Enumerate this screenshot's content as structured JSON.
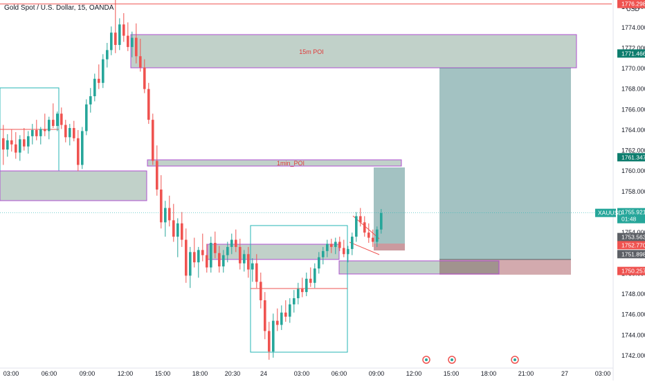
{
  "header": {
    "symbol_label": "Gold Spot / U.S. Dollar, 15, OANDA",
    "currency": "USD",
    "top_scale": "17 30"
  },
  "colors": {
    "up": "#26a69a",
    "down": "#ef5350",
    "green_zone": "#1f5b3c",
    "teal_zone": "#0d5e5e",
    "red_zone": "#8c1f2a",
    "purple": "#b04fd1",
    "teal_line": "#26b5b5",
    "red_line": "#ef5350"
  },
  "chart_data": {
    "type": "candlestick",
    "symbol": "XAUUSD",
    "timeframe": "15",
    "y_axis": {
      "range": [
        1741,
        1778
      ],
      "ticks": [
        1742,
        1744,
        1746,
        1748,
        1750,
        1752,
        1754,
        1756,
        1758,
        1760,
        1762,
        1764,
        1766,
        1768,
        1770,
        1772,
        1774,
        1776
      ],
      "tick_labels": [
        "1742.000",
        "1744.000",
        "1746.000",
        "1748.000",
        "1750.000",
        "1752.000",
        "1754.000",
        "1756.000",
        "1758.000",
        "1760.000",
        "1762.000",
        "1764.000",
        "1766.000",
        "1768.000",
        "1770.000",
        "1772.000",
        "1774.000",
        "1776.000"
      ]
    },
    "x_axis": {
      "tick_labels": [
        "03:00",
        "06:00",
        "09:00",
        "12:00",
        "15:00",
        "18:00",
        "20:30",
        "24",
        "03:00",
        "06:00",
        "09:00",
        "12:00",
        "15:00",
        "18:00",
        "21:00",
        "27",
        "03:00"
      ]
    },
    "price_labels": [
      {
        "value": 1776.298,
        "label": "1776.298",
        "color": "#ef5350"
      },
      {
        "value": 1771.466,
        "label": "1771.466",
        "color": "#0d7d6e"
      },
      {
        "value": 1761.347,
        "label": "1761.347",
        "color": "#0d7d6e"
      },
      {
        "value": 1755.921,
        "label": "1755.921",
        "sub": "01:48",
        "color": "#26a69a",
        "symbol_tag": "XAUUSD"
      },
      {
        "value": 1753.563,
        "label": "1753.563",
        "color": "#5d6066"
      },
      {
        "value": 1752.77,
        "label": "1752.770",
        "color": "#ef5350"
      },
      {
        "value": 1751.898,
        "label": "1751.898",
        "color": "#5d6066"
      },
      {
        "value": 1750.257,
        "label": "1750.257",
        "color": "#ef5350"
      }
    ],
    "zones": [
      {
        "label": "15m POI"
      },
      {
        "label": "1min_POI"
      }
    ],
    "candles_ohlc": [
      [
        1763.2,
        1764.5,
        1760.6,
        1762.1
      ],
      [
        1762.1,
        1763.6,
        1761.4,
        1763.0
      ],
      [
        1763.0,
        1764.1,
        1761.9,
        1762.6
      ],
      [
        1762.6,
        1763.8,
        1761.2,
        1761.8
      ],
      [
        1761.8,
        1763.5,
        1761.0,
        1763.1
      ],
      [
        1763.1,
        1764.2,
        1762.0,
        1762.4
      ],
      [
        1762.4,
        1763.9,
        1761.7,
        1763.4
      ],
      [
        1763.4,
        1764.6,
        1762.6,
        1764.0
      ],
      [
        1764.0,
        1765.0,
        1763.0,
        1763.4
      ],
      [
        1763.4,
        1764.3,
        1762.6,
        1764.1
      ],
      [
        1764.1,
        1765.6,
        1763.4,
        1763.9
      ],
      [
        1763.9,
        1765.3,
        1763.1,
        1765.0
      ],
      [
        1765.0,
        1766.6,
        1764.2,
        1764.4
      ],
      [
        1764.4,
        1765.8,
        1763.9,
        1765.6
      ],
      [
        1765.6,
        1766.2,
        1764.1,
        1764.5
      ],
      [
        1764.5,
        1765.0,
        1762.8,
        1763.3
      ],
      [
        1763.3,
        1764.6,
        1762.5,
        1764.2
      ],
      [
        1764.2,
        1764.9,
        1762.9,
        1763.2
      ],
      [
        1763.2,
        1764.0,
        1760.0,
        1760.6
      ],
      [
        1760.6,
        1764.3,
        1760.2,
        1763.9
      ],
      [
        1763.9,
        1767.0,
        1763.5,
        1766.5
      ],
      [
        1766.5,
        1768.1,
        1765.7,
        1767.3
      ],
      [
        1767.3,
        1769.5,
        1766.8,
        1769.0
      ],
      [
        1769.0,
        1770.4,
        1768.0,
        1768.6
      ],
      [
        1768.6,
        1771.4,
        1768.1,
        1770.9
      ],
      [
        1770.9,
        1772.5,
        1770.1,
        1771.8
      ],
      [
        1771.8,
        1774.1,
        1771.3,
        1773.5
      ],
      [
        1773.5,
        1776.8,
        1771.5,
        1772.3
      ],
      [
        1772.3,
        1774.9,
        1771.8,
        1774.3
      ],
      [
        1774.3,
        1775.4,
        1772.6,
        1773.2
      ],
      [
        1773.2,
        1774.5,
        1771.7,
        1772.1
      ],
      [
        1772.1,
        1773.6,
        1771.1,
        1773.0
      ],
      [
        1773.0,
        1774.4,
        1770.5,
        1771.2
      ],
      [
        1771.2,
        1772.9,
        1769.7,
        1770.1
      ],
      [
        1770.1,
        1770.9,
        1767.6,
        1768.0
      ],
      [
        1768.0,
        1768.6,
        1764.6,
        1765.0
      ],
      [
        1765.0,
        1765.6,
        1760.6,
        1761.0
      ],
      [
        1761.0,
        1762.5,
        1757.6,
        1758.2
      ],
      [
        1758.2,
        1759.6,
        1754.4,
        1755.0
      ],
      [
        1755.0,
        1757.1,
        1753.6,
        1756.4
      ],
      [
        1756.4,
        1757.6,
        1754.6,
        1755.2
      ],
      [
        1755.2,
        1756.8,
        1753.1,
        1753.6
      ],
      [
        1753.6,
        1755.4,
        1751.6,
        1754.9
      ],
      [
        1754.9,
        1756.0,
        1752.6,
        1753.3
      ],
      [
        1753.3,
        1754.4,
        1749.1,
        1749.8
      ],
      [
        1749.8,
        1752.6,
        1748.6,
        1752.1
      ],
      [
        1752.1,
        1753.5,
        1750.6,
        1751.1
      ],
      [
        1751.1,
        1752.6,
        1749.6,
        1752.3
      ],
      [
        1752.3,
        1753.9,
        1751.2,
        1751.8
      ],
      [
        1751.8,
        1752.9,
        1750.1,
        1750.6
      ],
      [
        1750.6,
        1753.6,
        1750.1,
        1753.0
      ],
      [
        1753.0,
        1754.1,
        1751.5,
        1752.0
      ],
      [
        1752.0,
        1752.7,
        1750.1,
        1750.7
      ],
      [
        1750.7,
        1752.3,
        1750.1,
        1751.8
      ],
      [
        1751.8,
        1753.1,
        1751.1,
        1752.6
      ],
      [
        1752.6,
        1753.9,
        1751.9,
        1753.3
      ],
      [
        1753.3,
        1754.3,
        1752.1,
        1752.6
      ],
      [
        1752.6,
        1753.4,
        1750.4,
        1751.0
      ],
      [
        1751.0,
        1752.3,
        1750.2,
        1751.9
      ],
      [
        1751.9,
        1752.6,
        1749.6,
        1750.4
      ],
      [
        1750.4,
        1751.5,
        1749.2,
        1751.0
      ],
      [
        1751.0,
        1751.9,
        1748.6,
        1749.2
      ],
      [
        1749.2,
        1750.1,
        1746.6,
        1747.4
      ],
      [
        1747.4,
        1748.2,
        1743.6,
        1744.4
      ],
      [
        1744.4,
        1745.3,
        1741.6,
        1742.4
      ],
      [
        1742.4,
        1746.1,
        1741.8,
        1745.4
      ],
      [
        1745.4,
        1746.6,
        1744.4,
        1745.0
      ],
      [
        1745.0,
        1746.9,
        1744.5,
        1746.2
      ],
      [
        1746.2,
        1747.4,
        1745.3,
        1745.8
      ],
      [
        1745.8,
        1747.6,
        1745.2,
        1747.0
      ],
      [
        1747.0,
        1748.4,
        1746.2,
        1747.6
      ],
      [
        1747.6,
        1749.1,
        1747.0,
        1748.5
      ],
      [
        1748.5,
        1749.6,
        1747.7,
        1748.2
      ],
      [
        1748.2,
        1750.1,
        1747.8,
        1749.5
      ],
      [
        1749.5,
        1750.6,
        1748.7,
        1749.1
      ],
      [
        1749.1,
        1751.0,
        1748.6,
        1750.5
      ],
      [
        1750.5,
        1752.1,
        1750.0,
        1751.6
      ],
      [
        1751.6,
        1752.6,
        1750.9,
        1752.2
      ],
      [
        1752.2,
        1753.3,
        1751.6,
        1752.9
      ],
      [
        1752.9,
        1753.4,
        1752.0,
        1752.6
      ],
      [
        1752.6,
        1753.5,
        1751.9,
        1753.1
      ],
      [
        1753.1,
        1753.6,
        1752.2,
        1752.5
      ],
      [
        1752.5,
        1753.3,
        1751.6,
        1751.9
      ],
      [
        1751.9,
        1752.7,
        1751.1,
        1752.4
      ],
      [
        1752.4,
        1754.0,
        1751.8,
        1753.6
      ],
      [
        1753.6,
        1756.0,
        1753.1,
        1755.6
      ],
      [
        1755.6,
        1756.4,
        1754.6,
        1755.0
      ],
      [
        1755.0,
        1755.6,
        1753.6,
        1754.0
      ],
      [
        1754.0,
        1754.9,
        1753.0,
        1753.5
      ],
      [
        1753.5,
        1754.3,
        1752.6,
        1753.1
      ],
      [
        1753.1,
        1754.6,
        1752.6,
        1754.3
      ],
      [
        1754.3,
        1756.3,
        1753.9,
        1755.9
      ]
    ]
  }
}
